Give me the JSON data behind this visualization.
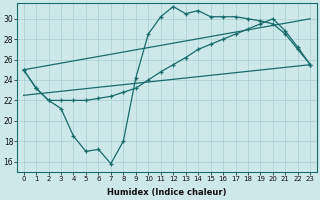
{
  "xlabel": "Humidex (Indice chaleur)",
  "ylabel": "",
  "xlim": [
    -0.5,
    23.5
  ],
  "ylim": [
    15,
    31.5
  ],
  "yticks": [
    16,
    18,
    20,
    22,
    24,
    26,
    28,
    30
  ],
  "xticks": [
    0,
    1,
    2,
    3,
    4,
    5,
    6,
    7,
    8,
    9,
    10,
    11,
    12,
    13,
    14,
    15,
    16,
    17,
    18,
    19,
    20,
    21,
    22,
    23
  ],
  "bg_color": "#cde8e8",
  "line_color": "#1a6b6b",
  "line1_x": [
    0,
    1,
    2,
    3,
    4,
    5,
    6,
    7,
    8,
    9,
    10,
    11,
    12,
    13,
    14,
    15,
    16,
    17,
    18,
    19,
    20,
    21,
    22,
    23
  ],
  "line1_y": [
    25.0,
    23.2,
    22.0,
    21.2,
    18.5,
    17.0,
    17.2,
    15.8,
    18.0,
    24.2,
    28.5,
    30.2,
    31.2,
    30.5,
    30.8,
    30.2,
    30.2,
    30.2,
    30.0,
    29.8,
    29.5,
    28.5,
    27.0,
    25.5
  ],
  "line2_x": [
    0,
    1,
    2,
    3,
    4,
    5,
    6,
    7,
    8,
    9,
    10,
    11,
    12,
    13,
    14,
    15,
    16,
    17,
    18,
    19,
    20,
    21,
    22,
    23
  ],
  "line2_y": [
    25.0,
    23.2,
    22.0,
    22.0,
    22.0,
    22.0,
    22.2,
    22.4,
    22.8,
    23.2,
    24.0,
    24.8,
    25.5,
    26.2,
    27.0,
    27.5,
    28.0,
    28.5,
    29.0,
    29.5,
    30.0,
    28.8,
    27.2,
    25.5
  ],
  "line3_x": [
    0,
    23
  ],
  "line3_y": [
    25.0,
    30.0
  ],
  "line4_x": [
    0,
    23
  ],
  "line4_y": [
    22.5,
    25.5
  ]
}
